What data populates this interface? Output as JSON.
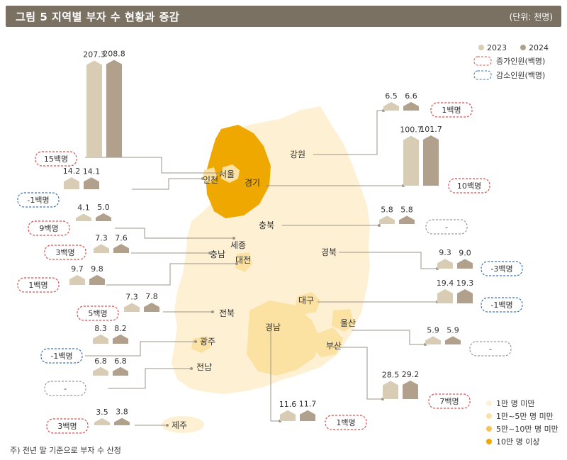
{
  "title": "그림 5  지역별 부자 수 현황과 증감",
  "unit": "(단위: 천명)",
  "footnote": "주) 전년 말 기준으로 부자 수 산정",
  "colors": {
    "bar2023": "#d8ccb4",
    "bar2024": "#b0a08c",
    "increase": "#d8524f",
    "decrease": "#3d74b4",
    "none": "#9a9a9a",
    "scale": [
      "#fdf0d3",
      "#fbe2a3",
      "#f6c453",
      "#eea800"
    ]
  },
  "legend": {
    "series": [
      "2023",
      "2024"
    ],
    "increase": "증가인원(백명)",
    "decrease": "감소인원(백명)",
    "scale": [
      "1만 명 미만",
      "1만~5만 명 미만",
      "5만~10만 명 미만",
      "10만 명 이상"
    ]
  },
  "chart_data": {
    "type": "bar",
    "series_names": [
      "2023",
      "2024"
    ],
    "regions": [
      {
        "name": "서울",
        "v2023": 207.3,
        "v2024": 208.8,
        "change": "15백명",
        "dir": "up"
      },
      {
        "name": "인천",
        "v2023": 14.2,
        "v2024": 14.1,
        "change": "-1백명",
        "dir": "down"
      },
      {
        "name": "세종",
        "v2023": 4.1,
        "v2024": 5.0,
        "change": "9백명",
        "dir": "up"
      },
      {
        "name": "충남",
        "v2023": 7.3,
        "v2024": 7.6,
        "change": "3백명",
        "dir": "up"
      },
      {
        "name": "대전",
        "v2023": 9.7,
        "v2024": 9.8,
        "change": "1백명",
        "dir": "up"
      },
      {
        "name": "전북",
        "v2023": 7.3,
        "v2024": 7.8,
        "change": "5백명",
        "dir": "up"
      },
      {
        "name": "광주",
        "v2023": 8.3,
        "v2024": 8.2,
        "change": "-1백명",
        "dir": "down"
      },
      {
        "name": "전남",
        "v2023": 6.8,
        "v2024": 6.8,
        "change": "-",
        "dir": "none"
      },
      {
        "name": "제주",
        "v2023": 3.5,
        "v2024": 3.8,
        "change": "3백명",
        "dir": "up"
      },
      {
        "name": "경남",
        "v2023": 11.6,
        "v2024": 11.7,
        "change": "1백명",
        "dir": "up"
      },
      {
        "name": "부산",
        "v2023": 28.5,
        "v2024": 29.2,
        "change": "7백명",
        "dir": "up"
      },
      {
        "name": "울산",
        "v2023": 5.9,
        "v2024": 5.9,
        "change": "-",
        "dir": "none"
      },
      {
        "name": "대구",
        "v2023": 19.4,
        "v2024": 19.3,
        "change": "-1백명",
        "dir": "down"
      },
      {
        "name": "경북",
        "v2023": 9.3,
        "v2024": 9.0,
        "change": "-3백명",
        "dir": "down"
      },
      {
        "name": "충북",
        "v2023": 5.8,
        "v2024": 5.8,
        "change": "-",
        "dir": "none"
      },
      {
        "name": "경기",
        "v2023": 100.7,
        "v2024": 101.7,
        "change": "10백명",
        "dir": "up"
      },
      {
        "name": "강원",
        "v2023": 6.5,
        "v2024": 6.6,
        "change": "1백명",
        "dir": "up"
      }
    ]
  }
}
